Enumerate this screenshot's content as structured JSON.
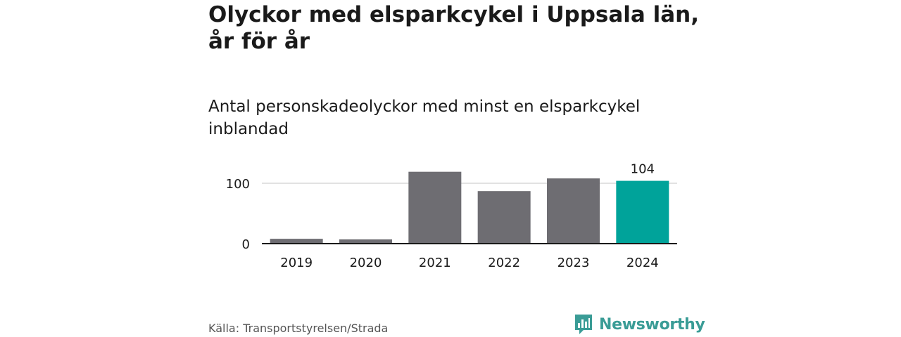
{
  "title": "Olyckor med elsparkcykel i Uppsala län, år för år",
  "subtitle": "Antal personskadeolyckor med minst en elsparkcykel inblandad",
  "source": "Källa: Transportstyrelsen/Strada",
  "brand": {
    "name": "Newsworthy",
    "logo_icon": "bar-chart-speech-bubble-icon",
    "color": "#3a9c96"
  },
  "colors": {
    "bar": "#6e6d72",
    "highlight": "#00a39a",
    "grid": "#d9d9d9",
    "axis": "#1a1a1a"
  },
  "chart_data": {
    "type": "bar",
    "categories": [
      "2019",
      "2020",
      "2021",
      "2022",
      "2023",
      "2024"
    ],
    "values": [
      8,
      7,
      119,
      87,
      108,
      104
    ],
    "highlight_index": 5,
    "data_labels": [
      null,
      null,
      null,
      null,
      null,
      "104"
    ],
    "yticks": [
      0,
      100
    ],
    "ylim": [
      0,
      119
    ],
    "grid": true,
    "xlabel": "",
    "ylabel": ""
  }
}
